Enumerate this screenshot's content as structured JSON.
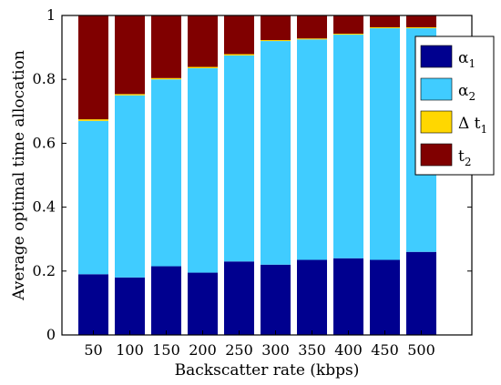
{
  "chart_data": {
    "type": "bar",
    "stacked": true,
    "xlabel": "Backscatter rate (kbps)",
    "ylabel": "Average optimal time allocation",
    "ylim": [
      0,
      1
    ],
    "yticks": [
      "0",
      "0.2",
      "0.4",
      "0.6",
      "0.8",
      "1"
    ],
    "categories": [
      "50",
      "100",
      "150",
      "200",
      "250",
      "300",
      "350",
      "400",
      "450",
      "500"
    ],
    "series": [
      {
        "name": "α1",
        "label_main": "α",
        "label_sub": "1",
        "color": "#00008f",
        "values": [
          0.19,
          0.18,
          0.215,
          0.195,
          0.23,
          0.22,
          0.235,
          0.24,
          0.235,
          0.26
        ]
      },
      {
        "name": "α2",
        "label_main": "α",
        "label_sub": "2",
        "color": "#40ccff",
        "values": [
          0.48,
          0.57,
          0.585,
          0.64,
          0.645,
          0.7,
          0.69,
          0.7,
          0.725,
          0.7
        ]
      },
      {
        "name": "Δ t1",
        "label_main": "Δ t",
        "label_sub": "1",
        "color": "#ffd700",
        "values": [
          0.005,
          0.004,
          0.004,
          0.004,
          0.004,
          0.003,
          0.003,
          0.003,
          0.003,
          0.003
        ]
      },
      {
        "name": "t2",
        "label_main": "t",
        "label_sub": "2",
        "color": "#800000",
        "values": [
          0.325,
          0.246,
          0.196,
          0.161,
          0.121,
          0.077,
          0.072,
          0.057,
          0.037,
          0.037
        ]
      }
    ],
    "legend_position": "top-right",
    "grid": false
  }
}
